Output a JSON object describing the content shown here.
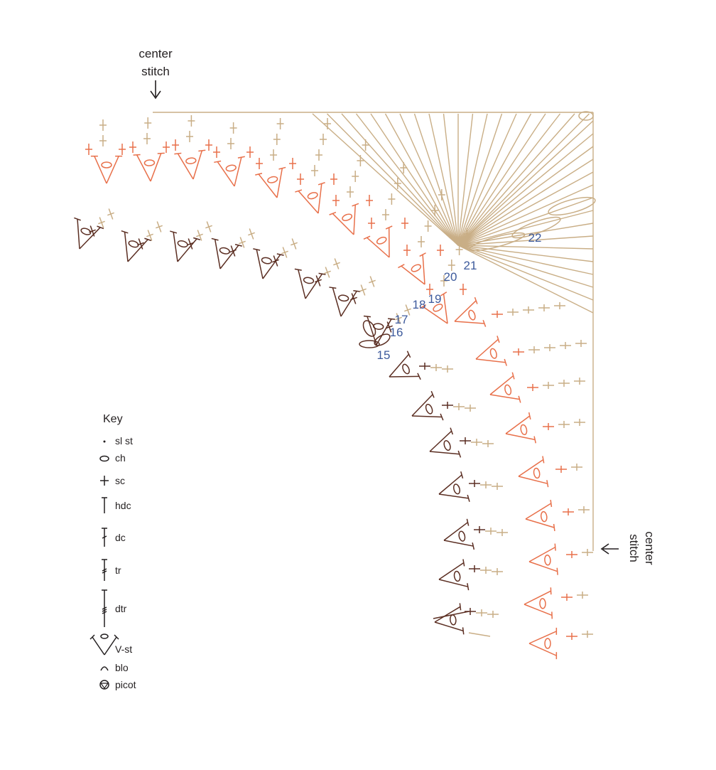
{
  "top_label": [
    "center",
    "stitch"
  ],
  "right_label": [
    "center",
    "stitch"
  ],
  "row_numbers": [
    "15",
    "16",
    "17",
    "18",
    "19",
    "20",
    "21",
    "22"
  ],
  "key": {
    "title": "Key",
    "items": [
      "sl st",
      "ch",
      "sc",
      "hdc",
      "dc",
      "tr",
      "dtr",
      "V-st",
      "blo",
      "picot"
    ]
  }
}
